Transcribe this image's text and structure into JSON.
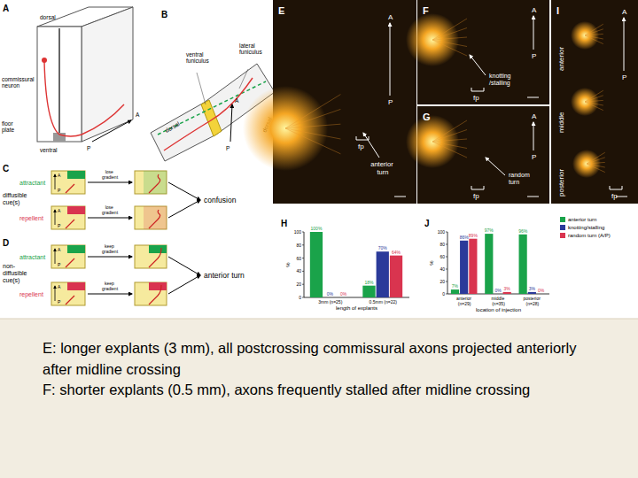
{
  "panel_a": {
    "label": "A",
    "texts": [
      "dorsal",
      "commissural neuron",
      "floor plate",
      "ventral",
      "A",
      "P"
    ]
  },
  "panel_b": {
    "label": "B",
    "texts": [
      "ventral funiculus",
      "lateral funiculus",
      "dorsal",
      "A",
      "P",
      "dorsal"
    ]
  },
  "panel_c": {
    "label": "C",
    "cue": [
      "diffusible",
      "cue(s)"
    ],
    "rows": [
      {
        "cue_type": "attractant",
        "axis": [
          "A",
          "P"
        ],
        "note": "lose gradient"
      },
      {
        "cue_type": "repellent",
        "axis": [
          "A",
          "P"
        ],
        "note": "lose gradient"
      }
    ],
    "outcome": "confusion"
  },
  "panel_d": {
    "label": "D",
    "cue": [
      "non-",
      "diffusible",
      "cue(s)"
    ],
    "rows": [
      {
        "cue_type": "attractant",
        "axis": [
          "A",
          "P"
        ],
        "note": "keep gradient"
      },
      {
        "cue_type": "repellent",
        "axis": [
          "A",
          "P"
        ],
        "note": "keep gradient"
      }
    ],
    "outcome": "anterior turn"
  },
  "panel_e": {
    "label": "E",
    "texts": [
      "A",
      "P",
      "anterior turn",
      "fp"
    ]
  },
  "panel_f": {
    "label": "F",
    "texts": [
      "A",
      "P",
      "knotting /stalling",
      "fp"
    ]
  },
  "panel_g": {
    "label": "G",
    "texts": [
      "A",
      "P",
      "random turn",
      "fp"
    ]
  },
  "panel_i": {
    "label": "I",
    "texts": [
      "A",
      "P",
      "anterior",
      "middle",
      "posterior",
      "fp"
    ]
  },
  "chart_data": [
    {
      "type": "bar",
      "title": "H",
      "x_label": "length of explants",
      "y_label": "%",
      "categories": [
        "3mm (n=25)",
        "0.5mm (n=22)"
      ],
      "series": [
        {
          "color": "#1aa34a",
          "values": [
            100,
            18
          ],
          "value_labels": [
            "100%",
            "18%"
          ]
        },
        {
          "color": "#2b3a9a",
          "values": [
            0,
            70
          ],
          "value_labels": [
            "0%",
            "70%"
          ]
        },
        {
          "color": "#d9344f",
          "values": [
            0,
            64
          ],
          "value_labels": [
            "0%",
            "64%"
          ]
        }
      ],
      "ylim": [
        0,
        100
      ],
      "yticks": [
        0,
        20,
        40,
        60,
        80,
        100
      ],
      "data_labels": true
    },
    {
      "type": "bar",
      "title": "J",
      "x_label": "location of injection",
      "y_label": "%",
      "categories": [
        "anterior (n=29)",
        "middle (n=35)",
        "posterior (n=28)"
      ],
      "series": [
        {
          "name": "anterior turn",
          "color": "#1aa34a",
          "values": [
            7,
            97,
            96
          ],
          "value_labels": [
            "7%",
            "97%",
            "96%"
          ]
        },
        {
          "name": "knotting/stalling",
          "color": "#2b3a9a",
          "values": [
            86,
            0,
            3
          ],
          "value_labels": [
            "86%",
            "0%",
            "3%"
          ]
        },
        {
          "name": "random turn (A/P)",
          "color": "#d9344f",
          "values": [
            89,
            3,
            0
          ],
          "value_labels": [
            "89%",
            "3%",
            "0%"
          ]
        }
      ],
      "ylim": [
        0,
        100
      ],
      "yticks": [
        0,
        20,
        40,
        60,
        80,
        100
      ],
      "data_labels": true,
      "legend": "right"
    }
  ],
  "caption": [
    "E: longer explants (3 mm), all postcrossing commissural axons projected anteriorly",
    "after midline crossing",
    "F: shorter explants (0.5 mm), axons frequently stalled after midline crossing"
  ]
}
